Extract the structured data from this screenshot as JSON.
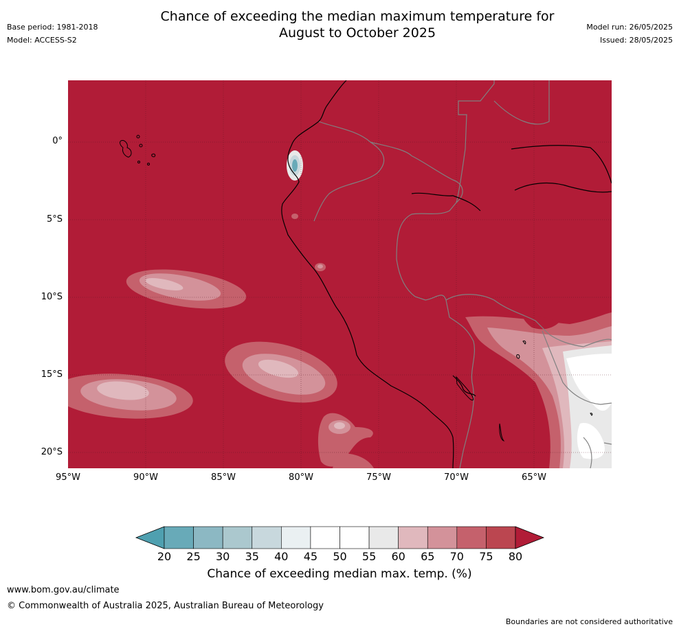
{
  "header": {
    "title_line1": "Chance of exceeding the median maximum temperature for",
    "title_line2": "August to October 2025",
    "base_period": "Base period: 1981-2018",
    "model": "Model: ACCESS-S2",
    "model_run": "Model run: 26/05/2025",
    "issued": "Issued: 28/05/2025"
  },
  "map": {
    "lat_ticks": [
      "0°",
      "5°S",
      "10°S",
      "15°S",
      "20°S"
    ],
    "lon_ticks": [
      "95°W",
      "90°W",
      "85°W",
      "80°W",
      "75°W",
      "70°W",
      "65°W"
    ],
    "background_category": "80+",
    "colors": {
      "c60_65": "#e0b8bd",
      "c65_70": "#d3929a",
      "c70_75": "#c5616c",
      "c75_80": "#bb4650",
      "c80plus": "#b11c37",
      "c55_60": "#e9e9e9",
      "c50_55": "#ffffff",
      "c25_30": "#68aab8",
      "c35_40": "#c8d8dd",
      "coast": "#000000",
      "border": "#808080"
    }
  },
  "colorbar": {
    "ticks": [
      "20",
      "25",
      "30",
      "35",
      "40",
      "45",
      "50",
      "55",
      "60",
      "65",
      "70",
      "75",
      "80"
    ],
    "colors": [
      "#4fa0b0",
      "#68aab8",
      "#8cb8c3",
      "#abc8ce",
      "#c8d8dd",
      "#eaf0f2",
      "#ffffff",
      "#ffffff",
      "#e9e9e9",
      "#e0b8bd",
      "#d3929a",
      "#c5616c",
      "#bb4650",
      "#b11c37"
    ],
    "label": "Chance of exceeding median max. temp. (%)"
  },
  "footer": {
    "url": "www.bom.gov.au/climate",
    "copyright": "© Commonwealth of Australia 2025, Australian Bureau of Meteorology",
    "note": "Boundaries are not considered authoritative"
  }
}
